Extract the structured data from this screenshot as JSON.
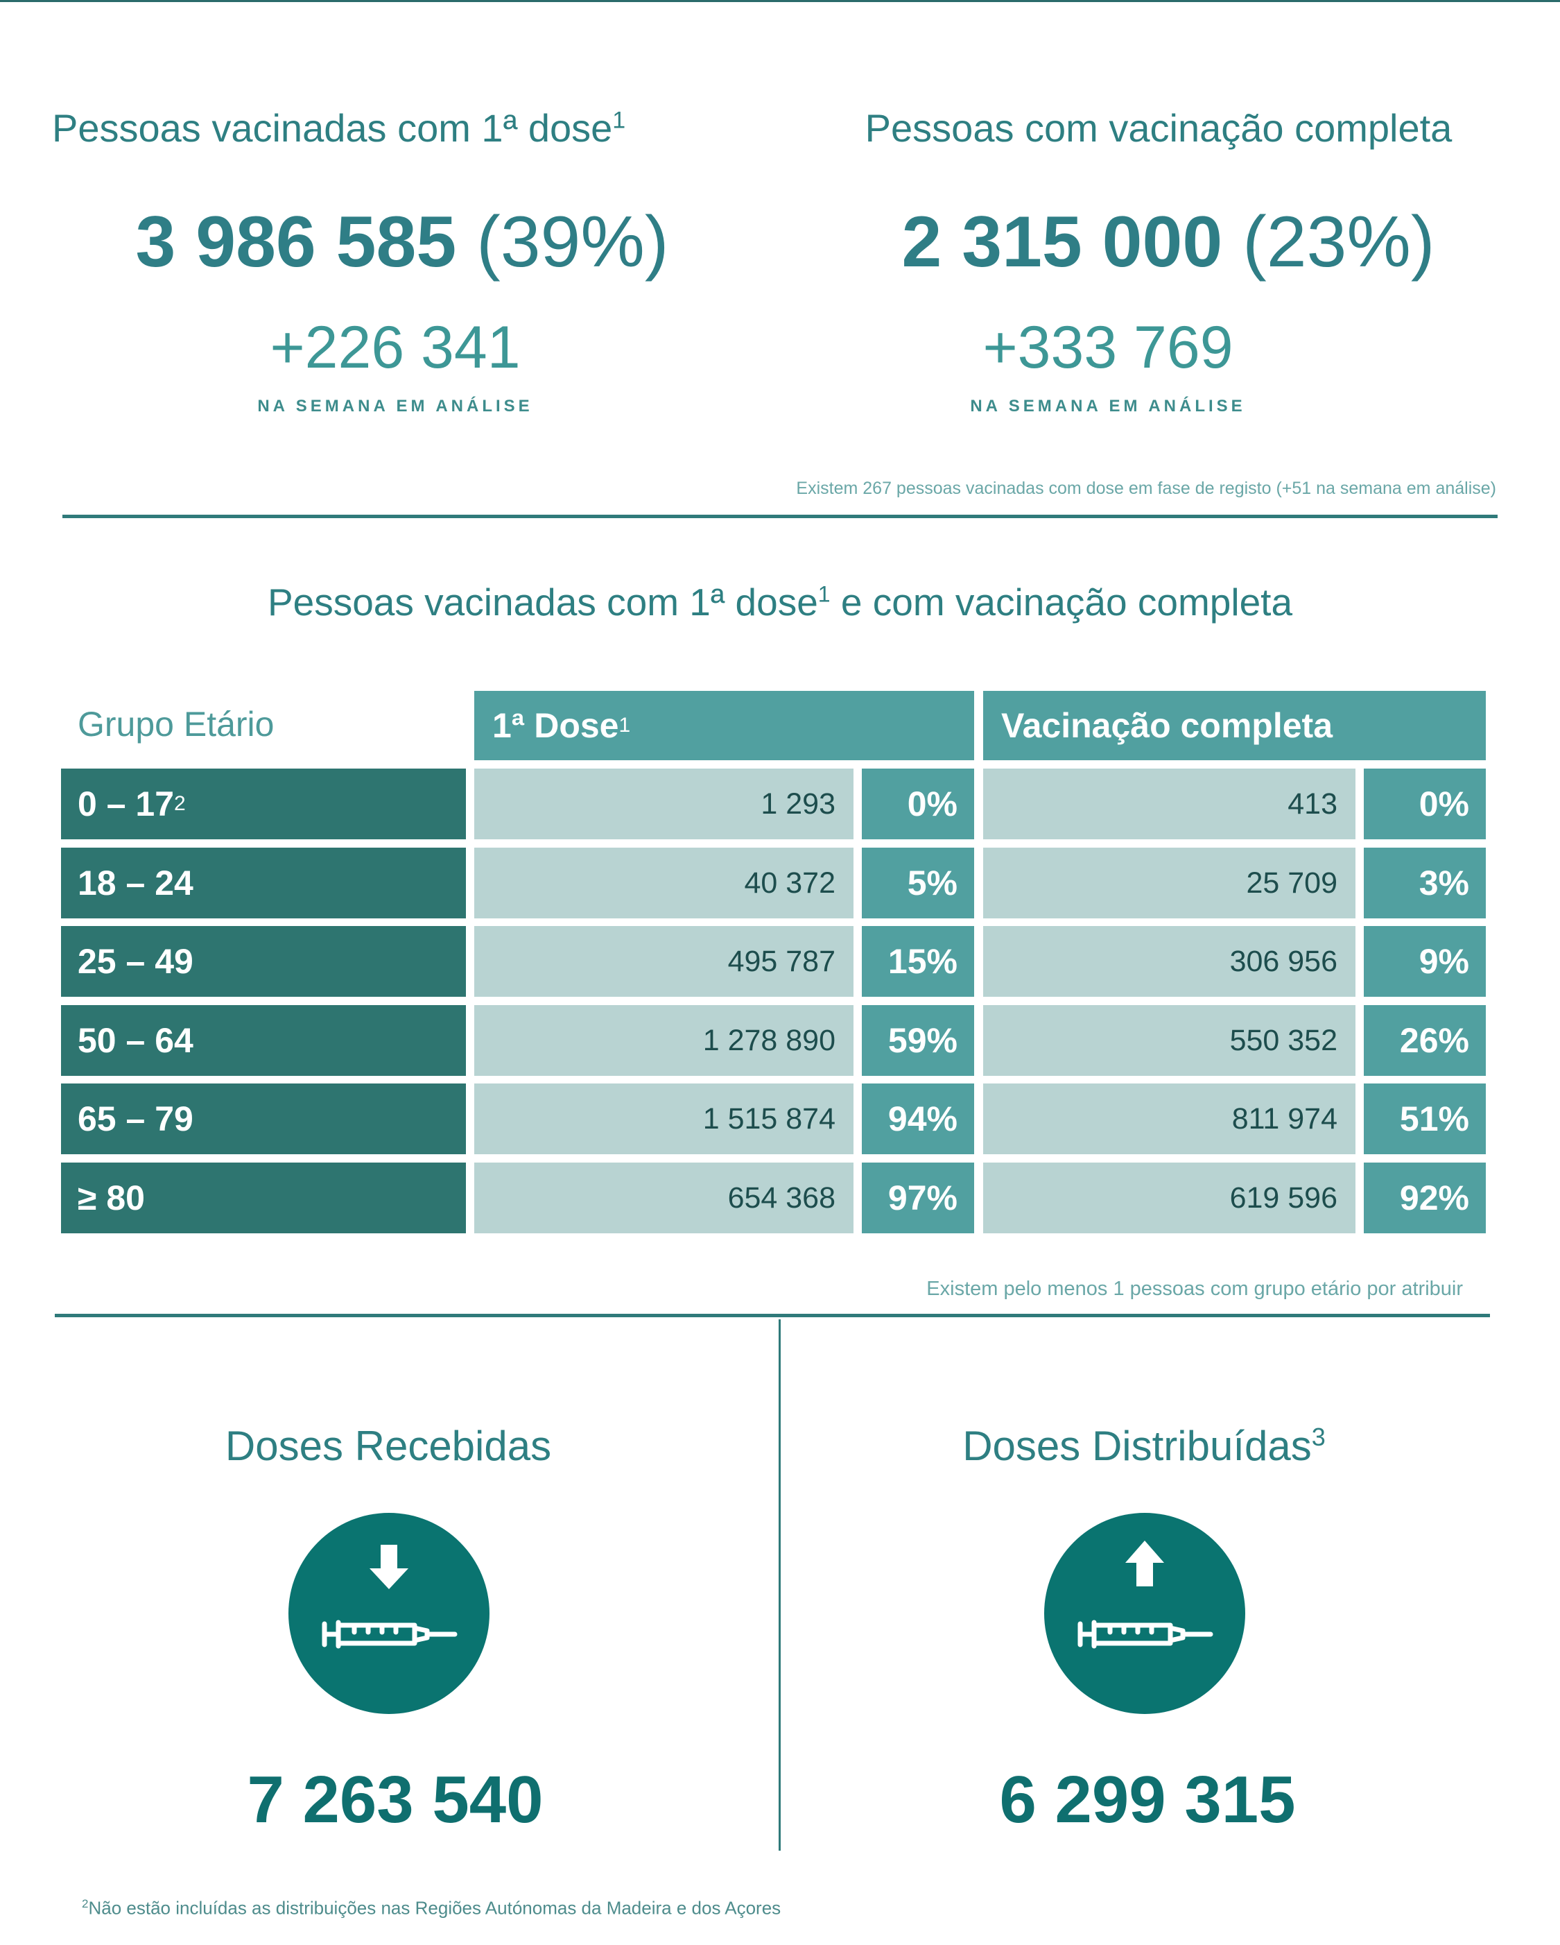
{
  "kpis": {
    "first_dose": {
      "title": "Pessoas vacinadas com 1ª dose",
      "sup": "1",
      "value": "3 986 585",
      "percent": "(39%)",
      "delta": "+226 341",
      "caption": "NA SEMANA EM ANÁLISE"
    },
    "complete": {
      "title": "Pessoas com vacinação completa",
      "value": "2 315 000",
      "percent": "(23%)",
      "delta": "+333 769",
      "caption": "NA SEMANA EM ANÁLISE"
    },
    "note": "Existem 267 pessoas vacinadas com dose em fase de registo (+51 na semana em análise)"
  },
  "table_section": {
    "title_part1": "Pessoas vacinadas com 1ª dose",
    "title_sup": "1",
    "title_part2": " e com vacinação completa",
    "header_age": "Grupo Etário",
    "header_first": "1ª Dose",
    "header_first_sup": "1",
    "header_complete": "Vacinação completa",
    "rows": [
      {
        "age": "0 – 17",
        "age_sup": "2",
        "first": "1 293",
        "first_pct": "0%",
        "complete": "413",
        "complete_pct": "0%"
      },
      {
        "age": "18 – 24",
        "first": "40 372",
        "first_pct": "5%",
        "complete": "25 709",
        "complete_pct": "3%"
      },
      {
        "age": "25 – 49",
        "first": "495 787",
        "first_pct": "15%",
        "complete": "306 956",
        "complete_pct": "9%"
      },
      {
        "age": "50 – 64",
        "first": "1 278 890",
        "first_pct": "59%",
        "complete": "550 352",
        "complete_pct": "26%"
      },
      {
        "age": "65 – 79",
        "first": "1 515 874",
        "first_pct": "94%",
        "complete": "811 974",
        "complete_pct": "51%"
      },
      {
        "age": "≥ 80",
        "first": "654 368",
        "first_pct": "97%",
        "complete": "619 596",
        "complete_pct": "92%"
      }
    ],
    "note": "Existem pelo menos 1 pessoas com grupo etário por atribuir"
  },
  "doses": {
    "received": {
      "title": "Doses Recebidas",
      "value": "7 263 540",
      "icon": "syringe-arrow-down-icon"
    },
    "distributed": {
      "title": "Doses Distribuídas",
      "sup": "3",
      "value": "6 299 315",
      "icon": "syringe-arrow-up-icon"
    }
  },
  "footnote": {
    "sup": "2",
    "text": "Não estão incluídas as distribuições nas Regiões Autónomas da Madeira e dos Açores"
  },
  "colors": {
    "dark_teal": "#2e7570",
    "mid_teal": "#51a0a0",
    "light_teal": "#b8d3d2",
    "icon_teal": "#0a7470",
    "text_teal": "#2e7f82"
  }
}
